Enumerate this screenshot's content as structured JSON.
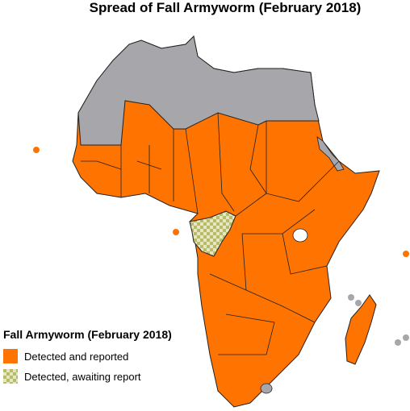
{
  "title": "Spread of Fall Armyworm (February 2018)",
  "legend": {
    "title": "Fall Armyworm (February 2018)",
    "items": [
      {
        "label": "Detected and reported"
      },
      {
        "label": "Detected, awaiting report"
      }
    ]
  }
}
